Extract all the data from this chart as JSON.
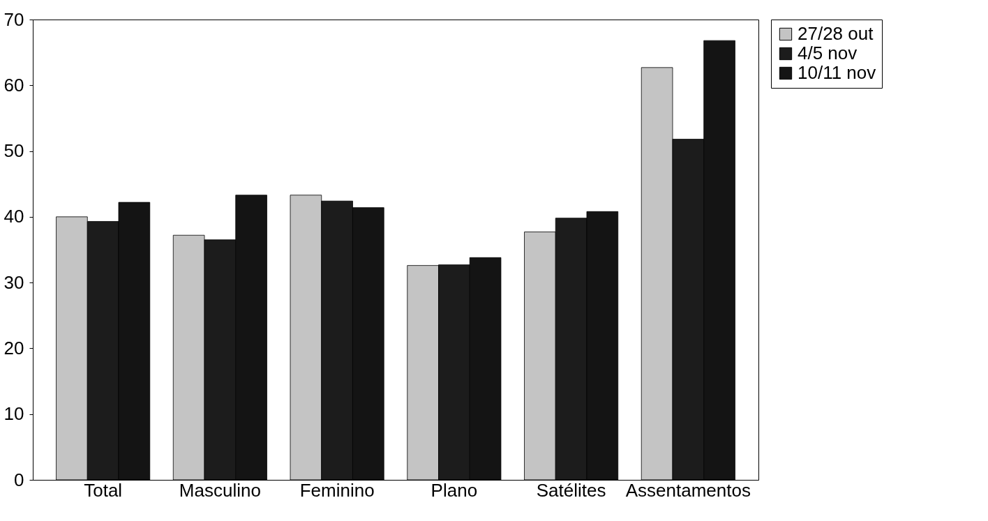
{
  "chart_data": {
    "type": "bar",
    "categories": [
      "Total",
      "Masculino",
      "Feminino",
      "Plano",
      "Satélites",
      "Assentamentos"
    ],
    "series": [
      {
        "name": "27/28 out",
        "color": "#c4c4c4",
        "values": [
          40.0,
          37.2,
          43.3,
          32.6,
          37.7,
          62.7
        ]
      },
      {
        "name": "4/5 nov",
        "color": "#1c1c1c",
        "values": [
          39.3,
          36.5,
          42.4,
          32.7,
          39.8,
          51.8
        ]
      },
      {
        "name": "10/11 nov",
        "color": "#141414",
        "values": [
          42.2,
          43.3,
          41.4,
          33.8,
          40.8,
          66.8
        ]
      }
    ],
    "ylim": [
      0,
      70
    ],
    "yticks": [
      0,
      10,
      20,
      30,
      40,
      50,
      60,
      70
    ],
    "grid": false,
    "legend": "right"
  }
}
